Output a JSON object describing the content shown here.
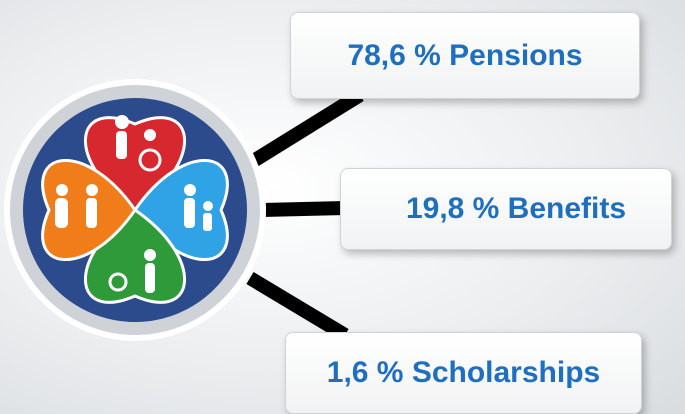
{
  "callouts": [
    {
      "label": "78,6 % Pensions"
    },
    {
      "label": "19,8 % Benefits"
    },
    {
      "label": "1,6 % Scholarships"
    }
  ]
}
